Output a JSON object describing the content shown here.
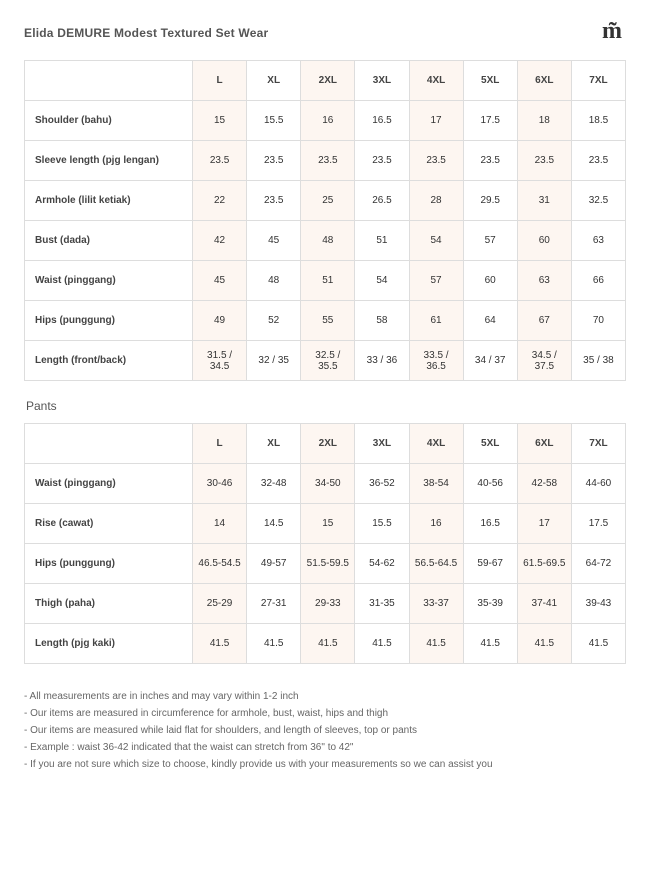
{
  "title": "Elida DEMURE Modest Textured Set Wear",
  "logo_glyph": "m̃",
  "colors": {
    "stripe": "#fdf6f1",
    "border": "#dddddd",
    "text": "#333333",
    "bg": "#ffffff"
  },
  "sizes": [
    "L",
    "XL",
    "2XL",
    "3XL",
    "4XL",
    "5XL",
    "6XL",
    "7XL"
  ],
  "top": {
    "rows": [
      {
        "label": "Shoulder (bahu)",
        "values": [
          "15",
          "15.5",
          "16",
          "16.5",
          "17",
          "17.5",
          "18",
          "18.5"
        ]
      },
      {
        "label": "Sleeve length (pjg lengan)",
        "values": [
          "23.5",
          "23.5",
          "23.5",
          "23.5",
          "23.5",
          "23.5",
          "23.5",
          "23.5"
        ]
      },
      {
        "label": "Armhole (lilit ketiak)",
        "values": [
          "22",
          "23.5",
          "25",
          "26.5",
          "28",
          "29.5",
          "31",
          "32.5"
        ]
      },
      {
        "label": "Bust (dada)",
        "values": [
          "42",
          "45",
          "48",
          "51",
          "54",
          "57",
          "60",
          "63"
        ]
      },
      {
        "label": "Waist (pinggang)",
        "values": [
          "45",
          "48",
          "51",
          "54",
          "57",
          "60",
          "63",
          "66"
        ]
      },
      {
        "label": "Hips (punggung)",
        "values": [
          "49",
          "52",
          "55",
          "58",
          "61",
          "64",
          "67",
          "70"
        ]
      },
      {
        "label": "Length (front/back)",
        "values": [
          "31.5 / 34.5",
          "32 / 35",
          "32.5 / 35.5",
          "33 / 36",
          "33.5 / 36.5",
          "34 / 37",
          "34.5 / 37.5",
          "35 / 38"
        ]
      }
    ]
  },
  "pants_label": "Pants",
  "pants": {
    "rows": [
      {
        "label": "Waist (pinggang)",
        "values": [
          "30-46",
          "32-48",
          "34-50",
          "36-52",
          "38-54",
          "40-56",
          "42-58",
          "44-60"
        ]
      },
      {
        "label": "Rise (cawat)",
        "values": [
          "14",
          "14.5",
          "15",
          "15.5",
          "16",
          "16.5",
          "17",
          "17.5"
        ]
      },
      {
        "label": "Hips (punggung)",
        "values": [
          "46.5-54.5",
          "49-57",
          "51.5-59.5",
          "54-62",
          "56.5-64.5",
          "59-67",
          "61.5-69.5",
          "64-72"
        ]
      },
      {
        "label": "Thigh (paha)",
        "values": [
          "25-29",
          "27-31",
          "29-33",
          "31-35",
          "33-37",
          "35-39",
          "37-41",
          "39-43"
        ]
      },
      {
        "label": "Length (pjg kaki)",
        "values": [
          "41.5",
          "41.5",
          "41.5",
          "41.5",
          "41.5",
          "41.5",
          "41.5",
          "41.5"
        ]
      }
    ]
  },
  "notes": [
    "- All measurements are in inches and may vary within 1-2 inch",
    "- Our items are measured in circumference for armhole, bust, waist, hips and thigh",
    "- Our items are measured while laid flat for shoulders, and length of sleeves, top or pants",
    "- Example : waist 36-42 indicated that the waist can stretch from 36\" to 42\"",
    "- If you are not sure which size to choose, kindly provide us with your measurements so we can assist you"
  ]
}
